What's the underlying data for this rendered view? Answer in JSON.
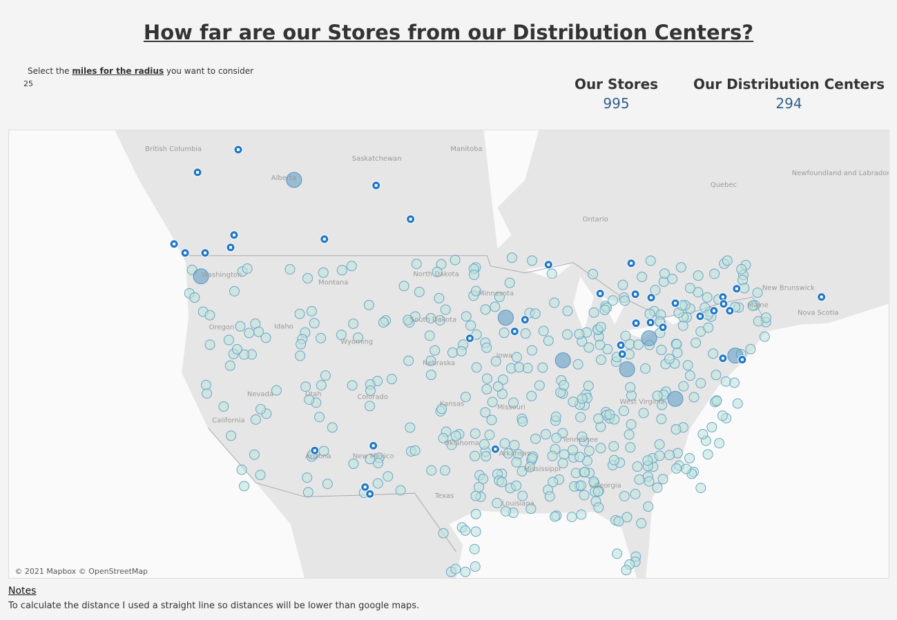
{
  "header": {
    "title": "How far are our Stores from our Distribution Centers?"
  },
  "parameter": {
    "prefix": "Select the",
    "link": "miles for the radius",
    "suffix": "you want to consider",
    "value": 25
  },
  "kpis": [
    {
      "label": "Our Stores",
      "value": 995
    },
    {
      "label": "Our Distribution Centers",
      "value": 294
    }
  ],
  "map": {
    "labels": [
      "British Columbia",
      "Alberta",
      "Saskatchewan",
      "Manitoba",
      "Ontario",
      "Quebec",
      "Newfoundland and Labrador",
      "New Brunswick",
      "Nova Scotia",
      "Maine",
      "Washington",
      "Montana",
      "North Dakota",
      "Minnesota",
      "South Dakota",
      "Idaho",
      "Oregon",
      "Wyoming",
      "Nebraska",
      "Iowa",
      "Nevada",
      "Utah",
      "Colorado",
      "Kansas",
      "Missouri",
      "California",
      "Arizona",
      "New Mexico",
      "Oklahoma",
      "Arkansas",
      "Texas",
      "Mississippi",
      "Georgia",
      "Louisiana",
      "Tennessee",
      "West Virginia"
    ],
    "attribution": "© 2021 Mapbox © OpenStreetMap"
  },
  "notes": {
    "heading": "Notes",
    "text": "To calculate the distance I used a straight line so distances will be lower than google maps."
  }
}
